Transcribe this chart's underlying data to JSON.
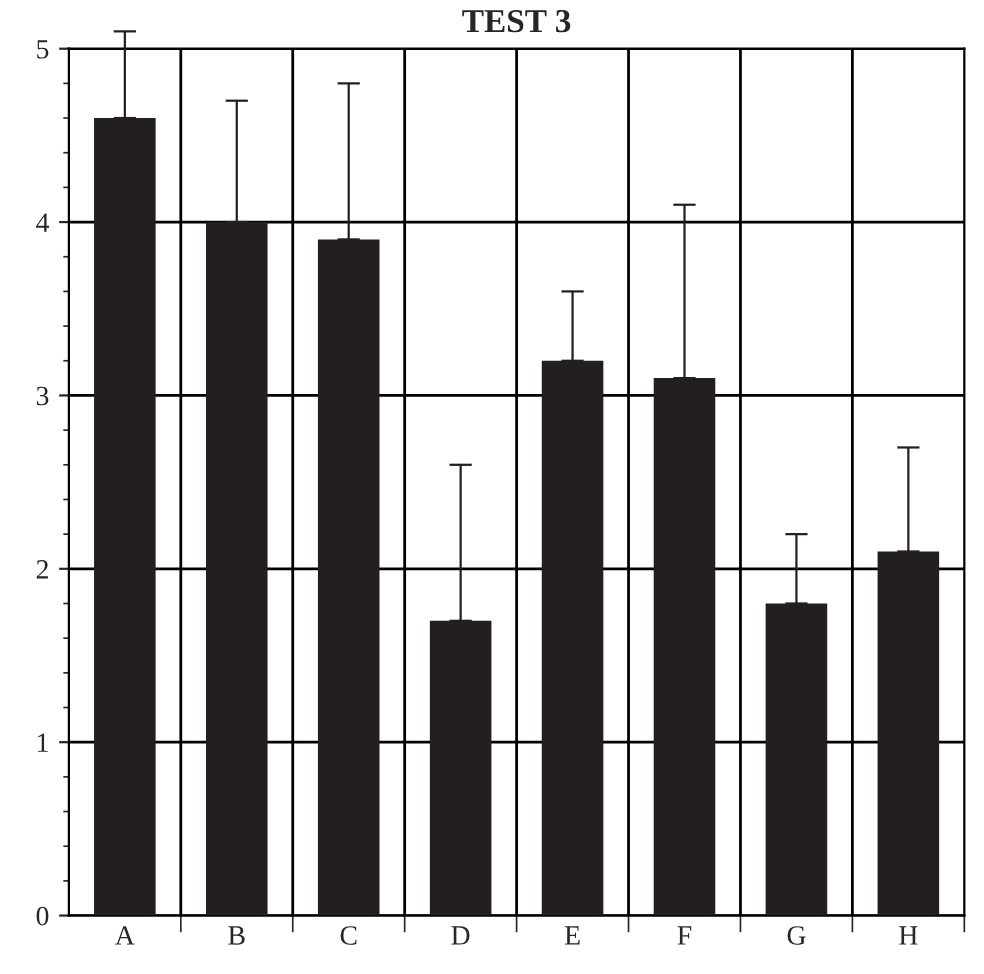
{
  "chart_data": {
    "type": "bar",
    "title": "TEST 3",
    "categories": [
      "A",
      "B",
      "C",
      "D",
      "E",
      "F",
      "G",
      "H"
    ],
    "values": [
      4.6,
      4.0,
      3.9,
      1.7,
      3.2,
      3.1,
      1.8,
      2.1
    ],
    "errors": [
      [
        4.6,
        5.1
      ],
      [
        4.0,
        4.7
      ],
      [
        3.9,
        4.8
      ],
      [
        1.7,
        2.6
      ],
      [
        3.2,
        3.6
      ],
      [
        3.1,
        4.1
      ],
      [
        1.8,
        2.2
      ],
      [
        2.1,
        2.7
      ]
    ],
    "color": "#231f20",
    "ylim": [
      0,
      5
    ],
    "yticks": [
      0,
      1,
      2,
      3,
      4,
      5
    ],
    "grid": true
  }
}
